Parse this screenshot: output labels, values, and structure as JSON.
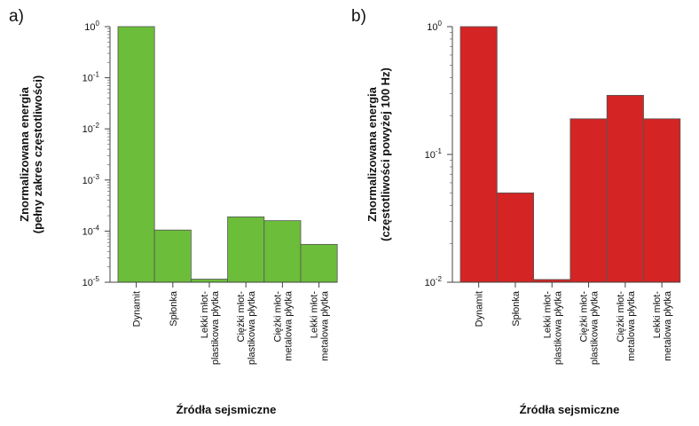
{
  "chart_data": [
    {
      "type": "bar",
      "panel_label": "a)",
      "categories": [
        [
          "Dynamit"
        ],
        [
          "Spłonka"
        ],
        [
          "Lekki młot-",
          "plastikowa płytka"
        ],
        [
          "Ciężki młot-",
          "plastikowa płytka"
        ],
        [
          "Ciężki młot-",
          "metalowa płytka"
        ],
        [
          "Lekki młot-",
          "metalowa płytka"
        ]
      ],
      "values": [
        1.0,
        0.000105,
        1.15e-05,
        0.00019,
        0.00016,
        5.5e-05
      ],
      "color": "#6cbd3a",
      "yscale": "log",
      "ylim": [
        1e-05,
        1
      ],
      "ytick_exponents": [
        0,
        -1,
        -2,
        -3,
        -4,
        -5
      ],
      "ylabel": [
        "Znormalizowana energia",
        "(pełny zakres częstotliwości)"
      ],
      "xlabel": "Źródła sejsmiczne"
    },
    {
      "type": "bar",
      "panel_label": "b)",
      "categories": [
        [
          "Dynamit"
        ],
        [
          "Spłonka"
        ],
        [
          "Lekki młot-",
          "plastikowa płytka"
        ],
        [
          "Ciężki młot-",
          "plastikowa płytka"
        ],
        [
          "Ciężki młot-",
          "metalowa płytka"
        ],
        [
          "Lekki młot-",
          "metalowa płytka"
        ]
      ],
      "values": [
        1.0,
        0.05,
        0.0105,
        0.19,
        0.29,
        0.19
      ],
      "color": "#d42424",
      "yscale": "log",
      "ylim": [
        0.01,
        1
      ],
      "ytick_labels": [
        "10",
        "10",
        "10"
      ],
      "ytick_exponents_text": [
        "0",
        "-1",
        "-2"
      ],
      "ylabel": [
        "Znormalizowana energia",
        "(częstotliwości powyżej 100 Hz)"
      ],
      "xlabel": "Źródła sejsmiczne"
    }
  ]
}
